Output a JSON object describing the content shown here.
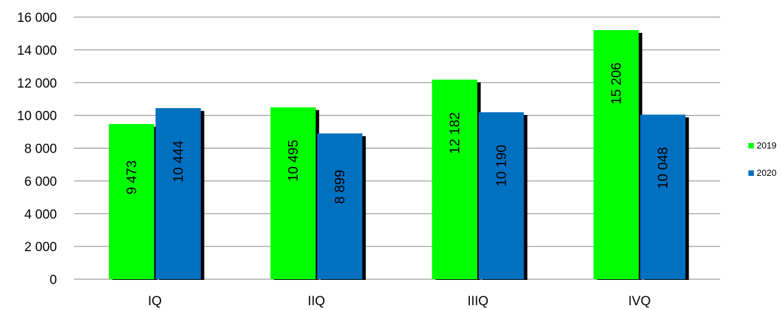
{
  "chart_data": {
    "type": "bar",
    "title": "",
    "xlabel": "",
    "ylabel": "",
    "categories": [
      "IQ",
      "IIQ",
      "IIIQ",
      "IVQ"
    ],
    "series": [
      {
        "name": "2019",
        "values": [
          9473,
          10495,
          12182,
          15206
        ],
        "labels": [
          "9 473",
          "10 495",
          "12 182",
          "15 206"
        ],
        "color": "#00FF00"
      },
      {
        "name": "2020",
        "values": [
          10444,
          8899,
          10190,
          10048
        ],
        "labels": [
          "10 444",
          "8 899",
          "10 190",
          "10 048"
        ],
        "color": "#0070C0"
      }
    ],
    "ylim": [
      0,
      16000
    ],
    "yticks": [
      0,
      2000,
      4000,
      6000,
      8000,
      10000,
      12000,
      14000,
      16000
    ],
    "ytick_labels": [
      "0",
      "2 000",
      "4 000",
      "6 000",
      "8 000",
      "10 000",
      "12 000",
      "14 000",
      "16 000"
    ],
    "grid": true,
    "legend_position": "right",
    "shadow_color": "#000000",
    "grid_color": "#808080"
  }
}
